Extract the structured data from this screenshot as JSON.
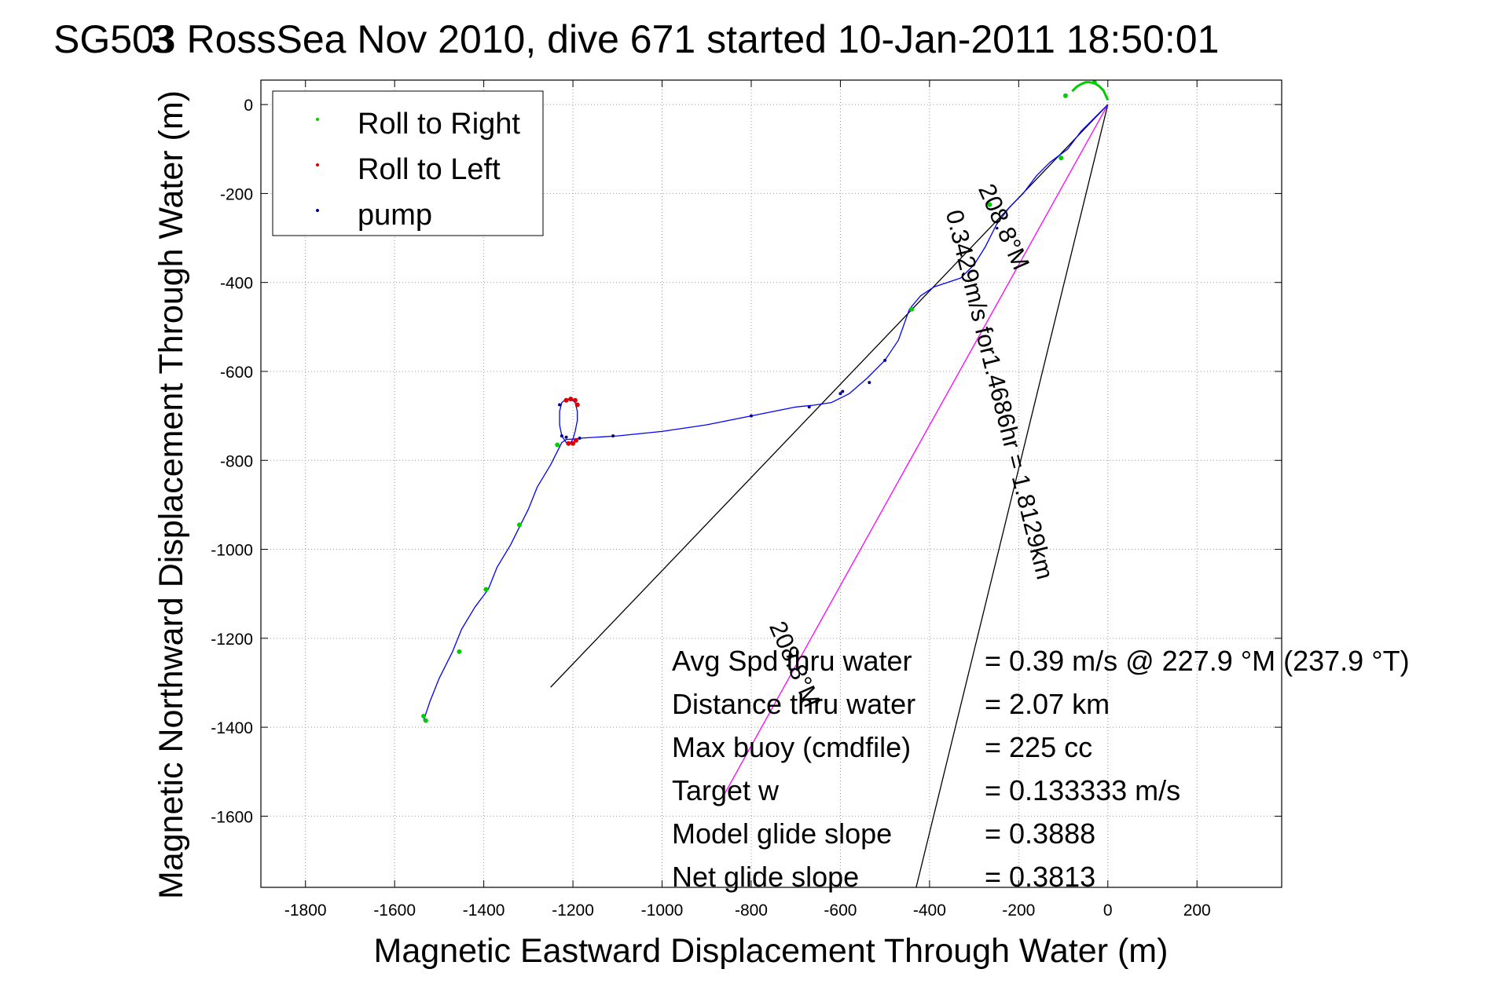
{
  "chart_data": {
    "type": "scatter",
    "title": "SG503 RossSea Nov 2010, dive 671 started 10-Jan-2011 18:50:01",
    "title_overlay_digit": "3",
    "xlabel": "Magnetic Eastward Displacement Through Water (m)",
    "ylabel": "Magnetic Northward Displacement Through Water (m)",
    "xlim": [
      -1900,
      390
    ],
    "ylim": [
      -1760,
      55
    ],
    "xticks": [
      -1800,
      -1600,
      -1400,
      -1200,
      -1000,
      -800,
      -600,
      -400,
      -200,
      0,
      200
    ],
    "yticks": [
      0,
      -200,
      -400,
      -600,
      -800,
      -1000,
      -1200,
      -1400,
      -1600
    ],
    "grid": true,
    "legend_position": "top-left",
    "legend": [
      {
        "label": "Roll to Right",
        "color": "#00cc00"
      },
      {
        "label": "Roll to Left",
        "color": "#dd0000"
      },
      {
        "label": "pump",
        "color": "#000080"
      }
    ],
    "series": [
      {
        "kind": "track",
        "color": "#0000ff",
        "x": [
          0,
          -20,
          -40,
          -60,
          -75,
          -90,
          -130,
          -160,
          -190,
          -220,
          -250,
          -275,
          -300,
          -330,
          -360,
          -390,
          -420,
          -445,
          -470,
          -500,
          -540,
          -580,
          -620,
          -660,
          -700,
          -800,
          -900,
          -1000,
          -1100,
          -1180,
          -1200,
          -1215,
          -1225,
          -1235,
          -1250,
          -1280,
          -1300,
          -1320,
          -1340,
          -1370,
          -1390,
          -1420,
          -1450,
          -1470,
          -1500,
          -1520,
          -1535
        ],
        "y": [
          0,
          -20,
          -40,
          -60,
          -80,
          -100,
          -130,
          -160,
          -200,
          -230,
          -270,
          -320,
          -360,
          -390,
          -400,
          -410,
          -430,
          -460,
          -530,
          -575,
          -615,
          -650,
          -670,
          -676,
          -680,
          -700,
          -720,
          -735,
          -745,
          -750,
          -752,
          -753,
          -760,
          -780,
          -810,
          -860,
          -910,
          -950,
          -990,
          -1040,
          -1090,
          -1130,
          -1180,
          -1230,
          -1290,
          -1340,
          -1385
        ]
      },
      {
        "kind": "right-roll arc",
        "color": "#00cc00",
        "x": [
          -80,
          -70,
          -60,
          -50,
          -40,
          -30,
          -20,
          -10,
          0
        ],
        "y": [
          30,
          40,
          46,
          50,
          50,
          48,
          42,
          32,
          10
        ]
      },
      {
        "kind": "loop",
        "color": "#0000ff",
        "x": [
          -1200,
          -1195,
          -1190,
          -1190,
          -1195,
          -1205,
          -1215,
          -1225,
          -1230,
          -1230,
          -1225,
          -1215,
          -1205,
          -1200
        ],
        "y": [
          -752,
          -735,
          -710,
          -690,
          -670,
          -662,
          -662,
          -670,
          -690,
          -720,
          -745,
          -760,
          -760,
          -752
        ]
      }
    ],
    "markers": {
      "roll_right": {
        "x": [
          -1535,
          -1530,
          -1455,
          -1395,
          -1320,
          -1235,
          -440,
          -265,
          -105,
          -95,
          -30
        ],
        "y": [
          -1375,
          -1385,
          -1230,
          -1090,
          -945,
          -765,
          -460,
          -225,
          -120,
          20,
          50
        ]
      },
      "roll_left": {
        "x": [
          -1215,
          -1205,
          -1195,
          -1190,
          -1210,
          -1200,
          -1193
        ],
        "y": [
          -665,
          -662,
          -665,
          -675,
          -762,
          -762,
          -755
        ]
      },
      "pump": {
        "x": [
          -1230,
          -1225,
          -1215,
          -1185,
          -1110,
          -800,
          -670,
          -600,
          -595,
          -535,
          -500
        ],
        "y": [
          -675,
          -745,
          -748,
          -750,
          -745,
          -700,
          -680,
          -650,
          -645,
          -625,
          -575
        ]
      }
    },
    "reference_lines": [
      {
        "label": "",
        "color": "#000000",
        "x": [
          0,
          -1250
        ],
        "y": [
          0,
          -1310
        ]
      },
      {
        "label": "0.3429m/s for1.4686hr = 1.8129km",
        "color": "#000000",
        "x": [
          0,
          -430
        ],
        "y": [
          0,
          -1760
        ]
      },
      {
        "label": "208.8°M",
        "color": "#ff00ff",
        "x": [
          0,
          -860
        ],
        "y": [
          0,
          -1550
        ]
      }
    ],
    "line_annotations": [
      "208.8°M",
      "0.3429m/s for1.4686hr = 1.8129km",
      "208.8°M"
    ]
  },
  "stats": [
    {
      "label": "Avg Spd thru water",
      "value": "=  0.39 m/s @ 227.9 °M (237.9 °T)"
    },
    {
      "label": "Distance thru water",
      "value": "=  2.07 km"
    },
    {
      "label": "Max buoy (cmdfile)",
      "value": "= 225 cc"
    },
    {
      "label": "Target w",
      "value": "= 0.133333 m/s"
    },
    {
      "label": "Model glide slope",
      "value": "= 0.3888"
    },
    {
      "label": "Net glide slope",
      "value": "= 0.3813"
    }
  ]
}
